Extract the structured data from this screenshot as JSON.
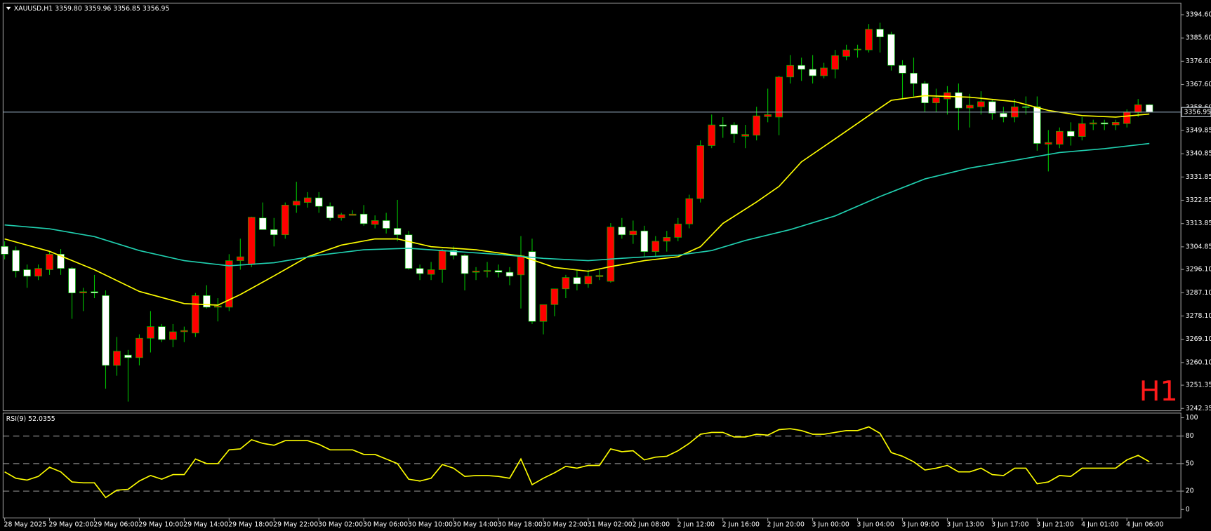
{
  "chart_data": [
    {
      "type": "candlestick",
      "title": "XAUUSD,H1",
      "ohlc": [
        {
          "value": 3359.8,
          "label": "3359.80"
        },
        3359.96,
        3356.85,
        3356.95
      ],
      "watermark": "H1",
      "categories": [
        "28 May 2025",
        null,
        null,
        null,
        "29 May 02:00",
        null,
        null,
        null,
        "29 May 06:00",
        null,
        null,
        null,
        "29 May 10:00",
        null,
        null,
        null,
        "29 May 14:00",
        null,
        null,
        null,
        "29 May 18:00",
        null,
        null,
        null,
        "29 May 22:00",
        null,
        null,
        null,
        "30 May 02:00",
        null,
        null,
        null,
        "30 May 06:00",
        null,
        null,
        null,
        "30 May 10:00",
        null,
        null,
        null,
        "30 May 14:00",
        null,
        null,
        null,
        "30 May 18:00",
        null,
        null,
        null,
        "30 May 22:00",
        null,
        null,
        null,
        "31 May 02:00",
        null,
        null,
        null,
        "2 Jun 08:00",
        null,
        null,
        null,
        "2 Jun 12:00",
        null,
        null,
        null,
        "2 Jun 16:00",
        null,
        null,
        null,
        "2 Jun 20:00",
        null,
        null,
        null,
        "3 Jun 00:00",
        null,
        null,
        null,
        "3 Jun 04:00",
        null,
        null,
        null,
        "3 Jun 09:00",
        null,
        null,
        null,
        "3 Jun 13:00",
        null,
        null,
        null,
        "3 Jun 17:00",
        null,
        null,
        null,
        "3 Jun 21:00",
        null,
        null,
        null,
        "4 Jun 01:00",
        null,
        null,
        null,
        "4 Jun 06:00",
        null,
        null
      ],
      "open": [
        3305,
        3303.5,
        3296,
        3293.5,
        3296,
        3302,
        3296.5,
        3287,
        3287.5,
        3286,
        3259,
        3263,
        3262,
        3269.5,
        3274,
        3269,
        3272,
        3271.5,
        3286,
        3281.5,
        3281.5,
        3299.5,
        3298,
        3316,
        3311.5,
        3309.5,
        3321,
        3322,
        3323.8,
        3320.5,
        3316,
        3317,
        3317.5,
        3313.5,
        3315,
        3312,
        3309.5,
        3296.5,
        3294.2,
        3296,
        3303.5,
        3301.5,
        3295,
        3295.3,
        3295.7,
        3295,
        3294,
        3303,
        3276,
        3282.5,
        3288.6,
        3293,
        3290.5,
        3293.3,
        3291.5,
        3312.5,
        3309.5,
        3311,
        3303,
        3307,
        3308.5,
        3313.7,
        3323.5,
        3344,
        3352,
        3352,
        3347.6,
        3348,
        3355.2,
        3355,
        3370.5,
        3375,
        3373.5,
        3371,
        3373.5,
        3378.5,
        3381,
        3381,
        3389,
        3387,
        3375,
        3372,
        3368,
        3360.5,
        3362,
        3364.5,
        3358.5,
        3359,
        3361,
        3356.5,
        3355,
        3359,
        3359,
        3344.5,
        3344.5,
        3349.5,
        3347.5,
        3352.3,
        3352.8,
        3352,
        3352.5,
        3356.8,
        3359.8
      ],
      "high": [
        3307,
        3305,
        3298,
        3298,
        3303,
        3304,
        3297,
        3289,
        3294,
        3288,
        3270,
        3265,
        3271,
        3280,
        3275,
        3275,
        3274,
        3287,
        3290,
        3285,
        3302,
        3308,
        3316.5,
        3322,
        3316,
        3322,
        3330,
        3326,
        3326,
        3322,
        3318,
        3319,
        3321,
        3317,
        3318,
        3323,
        3311,
        3298,
        3299,
        3304,
        3305,
        3302,
        3297,
        3299,
        3298,
        3297,
        3309,
        3308,
        3281,
        3288,
        3294,
        3296,
        3296,
        3296,
        3314,
        3316,
        3315,
        3313,
        3309,
        3311,
        3316,
        3325,
        3346,
        3356,
        3355,
        3353,
        3352,
        3359,
        3366,
        3371,
        3379,
        3378,
        3379,
        3376,
        3381,
        3383,
        3383,
        3391,
        3391.5,
        3388,
        3377,
        3378,
        3369,
        3366,
        3367,
        3368,
        3364,
        3365,
        3362,
        3359,
        3362,
        3363,
        3363,
        3350,
        3351,
        3353,
        3355,
        3354,
        3354,
        3354,
        3358,
        3362,
        3359.96
      ],
      "low": [
        3300,
        3293,
        3289,
        3292,
        3294,
        3294,
        3277,
        3280,
        3285,
        3250,
        3255,
        3245,
        3259,
        3264,
        3268,
        3266,
        3268,
        3270,
        3281,
        3276,
        3280,
        3296,
        3297,
        3312,
        3305,
        3308,
        3318,
        3320,
        3318,
        3315,
        3315,
        3317,
        3313,
        3312,
        3310,
        3307,
        3296,
        3292,
        3292,
        3291,
        3300,
        3288,
        3292,
        3293,
        3293,
        3290,
        3281,
        3275,
        3271,
        3278,
        3285,
        3288,
        3289,
        3292,
        3291,
        3308,
        3306,
        3301,
        3301,
        3303,
        3307,
        3312,
        3322,
        3343,
        3347,
        3345,
        3343,
        3346,
        3353,
        3348,
        3368,
        3369,
        3368,
        3370,
        3370,
        3377,
        3378,
        3380,
        3380,
        3373,
        3362,
        3363,
        3357,
        3357,
        3356,
        3350,
        3351,
        3356,
        3354,
        3353,
        3353,
        3356,
        3342,
        3334,
        3343,
        3344,
        3346,
        3350,
        3350,
        3350,
        3351,
        3355,
        3356.85
      ],
      "close": [
        3302,
        3295.5,
        3293.5,
        3296.5,
        3302,
        3296.5,
        3287,
        3287.5,
        3287,
        3259,
        3264.5,
        3262,
        3269.5,
        3274,
        3269,
        3272,
        3272.5,
        3286,
        3281.5,
        3282,
        3299.5,
        3301,
        3316.3,
        3311.5,
        3309.5,
        3321,
        3322.5,
        3323.8,
        3320.5,
        3316,
        3317.3,
        3317.5,
        3313.8,
        3315,
        3312,
        3309.5,
        3296.5,
        3294.5,
        3296,
        3303.5,
        3301.5,
        3294.5,
        3295.5,
        3295.7,
        3295,
        3293.5,
        3301.5,
        3276,
        3282.5,
        3288.6,
        3293,
        3290.5,
        3293.5,
        3293.8,
        3312.5,
        3309.5,
        3311,
        3303,
        3307,
        3308.5,
        3313.7,
        3323.5,
        3344,
        3352,
        3351.5,
        3348.5,
        3348.3,
        3355.5,
        3356,
        3370.5,
        3375,
        3373.5,
        3371,
        3374,
        3378.8,
        3381,
        3381.3,
        3389,
        3386,
        3375,
        3372,
        3368,
        3360.5,
        3362.5,
        3364.5,
        3358.5,
        3359.6,
        3361,
        3356.5,
        3355,
        3359,
        3358.8,
        3344.8,
        3345.2,
        3349.5,
        3347.6,
        3352.5,
        3352.8,
        3352.3,
        3353,
        3357,
        3359.8,
        3356.95
      ],
      "up_color": "#ff0000",
      "down_color": "#ffffff",
      "wick_color": "#00c000",
      "overlays": [
        {
          "color": "#ffff00",
          "x": [
            0,
            4,
            8,
            12,
            16,
            19,
            21,
            24,
            27,
            30,
            33,
            35,
            38,
            42,
            46,
            49,
            52,
            54,
            57,
            60,
            62,
            64,
            67,
            69,
            71,
            74,
            77,
            79,
            82,
            86,
            90,
            93,
            96,
            99,
            102
          ],
          "values": [
            3307.9,
            3303.1,
            3296,
            3287.6,
            3282.9,
            3282.3,
            3286.4,
            3293.6,
            3301,
            3305.5,
            3307.9,
            3307.9,
            3304.9,
            3303.7,
            3301.3,
            3296.9,
            3295.4,
            3297.2,
            3299.5,
            3301,
            3304.9,
            3313.9,
            3322.2,
            3328.2,
            3337.7,
            3346.6,
            3355.6,
            3361.5,
            3363.3,
            3362.7,
            3361,
            3357.6,
            3355.6,
            3355,
            3356.2
          ]
        },
        {
          "color": "#20d0b0",
          "x": [
            0,
            4,
            8,
            12,
            16,
            20,
            24,
            28,
            32,
            36,
            40,
            44,
            48,
            52,
            56,
            60,
            63,
            66,
            70,
            74,
            78,
            82,
            86,
            90,
            94,
            98,
            102
          ],
          "values": [
            3313.3,
            3311.8,
            3308.8,
            3303.4,
            3299.5,
            3297.5,
            3298.7,
            3301.6,
            3303.7,
            3304.3,
            3303.1,
            3301.9,
            3300.4,
            3299.5,
            3300.7,
            3301.6,
            3303.4,
            3307.3,
            3311.5,
            3316.8,
            3324.3,
            3331.1,
            3335.3,
            3338.3,
            3341.3,
            3342.8,
            3344.8
          ]
        }
      ],
      "last_price": 3356.95,
      "ylim": [
        3241.45,
        3398.8
      ],
      "yticks": [
        {
          "value": 3394.6,
          "label": "3394.60"
        },
        {
          "value": 3385.6,
          "label": "3385.60"
        },
        {
          "value": 3376.6,
          "label": "3376.60"
        },
        {
          "value": 3367.6,
          "label": "3367.60"
        },
        {
          "value": 3358.6,
          "label": "3358.60"
        },
        3349.85,
        3340.85,
        3331.85,
        3322.85,
        3313.85,
        3304.85,
        {
          "value": 3296.1,
          "label": "3296.10"
        },
        {
          "value": 3287.1,
          "label": "3287.10"
        },
        {
          "value": 3278.1,
          "label": "3278.10"
        },
        {
          "value": 3269.1,
          "label": "3269.10"
        },
        {
          "value": 3260.1,
          "label": "3260.10"
        },
        3251.35,
        3242.35
      ],
      "grid": false
    },
    {
      "type": "line",
      "title": "RSI(9) 52.0355",
      "color": "#ffff00",
      "values": [
        41,
        34,
        32,
        36,
        46,
        41,
        30,
        29,
        29,
        13,
        21,
        22,
        31,
        37,
        33,
        38,
        38,
        55,
        50,
        50,
        65,
        66,
        76,
        72,
        70,
        75,
        75,
        75,
        71,
        65,
        65,
        65,
        60,
        60,
        55,
        50,
        33,
        31,
        34,
        49,
        45,
        36,
        37,
        37,
        36,
        34,
        55,
        27,
        34,
        40,
        47,
        45,
        48,
        48,
        66,
        63,
        64,
        54,
        57,
        58,
        64,
        72,
        82,
        84,
        84,
        79,
        79,
        82,
        81,
        87,
        88,
        86,
        82,
        82,
        84,
        86,
        86,
        90,
        83,
        62,
        58,
        52,
        43,
        45,
        48,
        41,
        41,
        45,
        38,
        37,
        45,
        45,
        28,
        30,
        37,
        36,
        45,
        45,
        45,
        45,
        54,
        59,
        52.0355
      ],
      "levels": [
        20,
        50,
        80
      ],
      "ylim": [
        -9.2,
        104.2
      ],
      "yticks": [
        0,
        20,
        50,
        80,
        100
      ],
      "grid": false
    }
  ]
}
